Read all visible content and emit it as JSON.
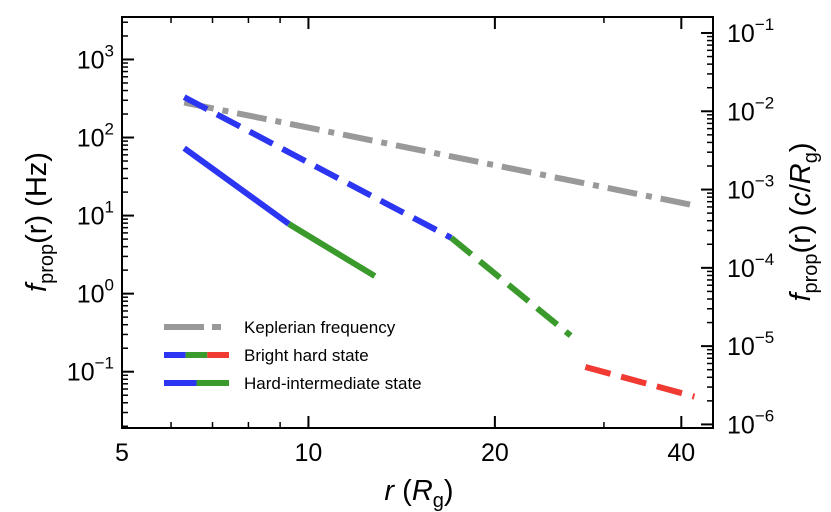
{
  "chart_data": {
    "type": "line",
    "xscale": "log",
    "yscale": "log",
    "xlabel": {
      "main": "r",
      "unit_open": " (",
      "unit_base": "R",
      "unit_sub": "g",
      "unit_close": ")"
    },
    "ylabel_left": {
      "main": "f",
      "sub": "prop",
      "arg": "(r)",
      "unit": " (Hz)"
    },
    "ylabel_right": {
      "main": "f",
      "sub": "prop",
      "arg": "(r)",
      "unit_open": " (",
      "unit_c": "c",
      "unit_slash": "/",
      "unit_base": "R",
      "unit_sub": "g",
      "unit_close": ")"
    },
    "xlim": [
      5,
      45
    ],
    "ylim_left": [
      0.019,
      3500
    ],
    "ylim_right": [
      9e-07,
      0.16
    ],
    "x_ticks": [
      {
        "value": 5,
        "label": "5"
      },
      {
        "value": 10,
        "label": "10"
      },
      {
        "value": 20,
        "label": "20"
      },
      {
        "value": 40,
        "label": "40"
      }
    ],
    "x_minor_ticks": [
      6,
      7,
      8,
      9,
      30
    ],
    "y_left_ticks": [
      {
        "value": 0.1,
        "base": "10",
        "exp": "−1"
      },
      {
        "value": 1,
        "base": "10",
        "exp": "0"
      },
      {
        "value": 10,
        "base": "10",
        "exp": "1"
      },
      {
        "value": 100,
        "base": "10",
        "exp": "2"
      },
      {
        "value": 1000,
        "base": "10",
        "exp": "3"
      }
    ],
    "y_right_ticks": [
      {
        "value": 1e-06,
        "base": "10",
        "exp": "−6"
      },
      {
        "value": 1e-05,
        "base": "10",
        "exp": "−5"
      },
      {
        "value": 0.0001,
        "base": "10",
        "exp": "−4"
      },
      {
        "value": 0.001,
        "base": "10",
        "exp": "−3"
      },
      {
        "value": 0.01,
        "base": "10",
        "exp": "−2"
      },
      {
        "value": 0.1,
        "base": "10",
        "exp": "−1"
      }
    ],
    "series": [
      {
        "name": "Keplerian frequency",
        "color": "#999999",
        "style": "dashdot",
        "points": [
          [
            6.3,
            280
          ],
          [
            42,
            13.5
          ]
        ]
      },
      {
        "name": "Bright hard state (inner)",
        "color": "#2c35f2",
        "style": "dashed",
        "points": [
          [
            6.3,
            330
          ],
          [
            17,
            5.2
          ]
        ]
      },
      {
        "name": "Bright hard state (middle)",
        "color": "#3a9a2c",
        "style": "dashed",
        "points": [
          [
            17,
            5.2
          ],
          [
            26.5,
            0.29
          ]
        ]
      },
      {
        "name": "Bright hard state (outer)",
        "color": "#f03a32",
        "style": "dashed",
        "points": [
          [
            28,
            0.115
          ],
          [
            42,
            0.048
          ]
        ]
      },
      {
        "name": "Hard-intermediate state (inner)",
        "color": "#2c35f2",
        "style": "solid",
        "points": [
          [
            6.3,
            73
          ],
          [
            9.3,
            7.8
          ]
        ]
      },
      {
        "name": "Hard-intermediate state (outer)",
        "color": "#3a9a2c",
        "style": "solid",
        "points": [
          [
            9.3,
            7.8
          ],
          [
            12.8,
            1.68
          ]
        ]
      }
    ],
    "legend": {
      "position": "lower-left",
      "entries": [
        {
          "label": "Keplerian frequency",
          "style": "dashdot",
          "colors": [
            "#999999"
          ]
        },
        {
          "label": "Bright hard state",
          "style": "dashed",
          "colors": [
            "#2c35f2",
            "#3a9a2c",
            "#f03a32"
          ]
        },
        {
          "label": "Hard-intermediate state",
          "style": "solid",
          "colors": [
            "#2c35f2",
            "#3a9a2c"
          ]
        }
      ]
    }
  }
}
